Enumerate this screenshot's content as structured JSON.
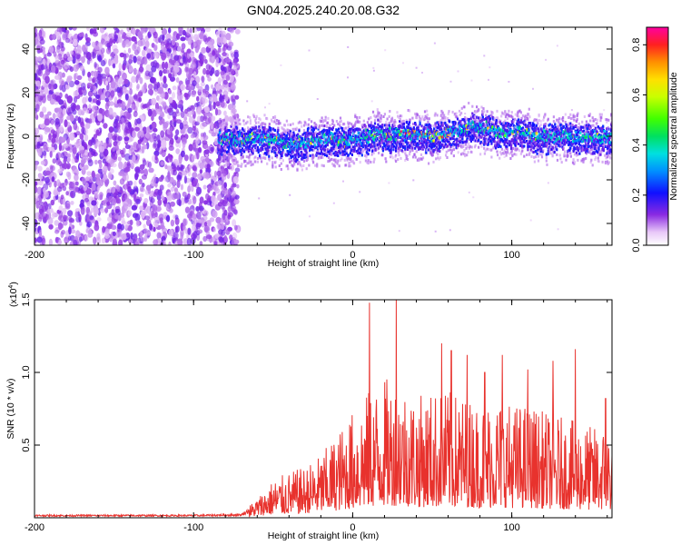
{
  "title": "GN04.2025.240.20.08.G32",
  "chart_data": [
    {
      "type": "heatmap",
      "xlabel": "Height of straight line (km)",
      "ylabel": "Frequency (Hz)",
      "xlim": [
        -200,
        163
      ],
      "ylim": [
        -50,
        50
      ],
      "x_ticks": [
        -200,
        -100,
        0,
        100
      ],
      "x_tick_labels": [
        "-200",
        "-100",
        "0",
        "100"
      ],
      "y_ticks": [
        -40,
        -20,
        0,
        20,
        40
      ],
      "y_tick_labels": [
        "-40",
        "-20",
        "0",
        "20",
        "40"
      ],
      "noise_region_x": [
        -200,
        -72
      ],
      "signal_region_x": [
        -85,
        163
      ],
      "signal_center_freq": [
        [
          -85,
          -2
        ],
        [
          -70,
          -2
        ],
        [
          -55,
          -1
        ],
        [
          -45,
          -3
        ],
        [
          -35,
          -4
        ],
        [
          -25,
          -2
        ],
        [
          -15,
          -1
        ],
        [
          -5,
          -2
        ],
        [
          5,
          -1
        ],
        [
          15,
          1
        ],
        [
          25,
          0
        ],
        [
          35,
          1
        ],
        [
          45,
          0
        ],
        [
          55,
          1
        ],
        [
          65,
          2
        ],
        [
          75,
          4
        ],
        [
          85,
          3
        ],
        [
          95,
          1
        ],
        [
          105,
          2
        ],
        [
          115,
          0
        ],
        [
          125,
          -1
        ],
        [
          135,
          0
        ],
        [
          145,
          -1
        ],
        [
          163,
          -1
        ]
      ],
      "colorbar": {
        "label": "Normalized spectral amplitude",
        "range": [
          0.0,
          0.87
        ],
        "ticks": [
          0.0,
          0.2,
          0.4,
          0.6,
          0.8
        ],
        "tick_labels": [
          "0.0",
          "0.2",
          "0.4",
          "0.6",
          "0.8"
        ]
      }
    },
    {
      "type": "line",
      "xlabel": "Height of straight line (km)",
      "ylabel": "SNR (10 * v/v)",
      "y_scale_note": "(x10",
      "y_scale_exp": "4",
      "y_scale_close": ")",
      "xlim": [
        -200,
        163
      ],
      "ylim": [
        0,
        1.5
      ],
      "x_ticks": [
        -200,
        -100,
        0,
        100
      ],
      "x_tick_labels": [
        "-200",
        "-100",
        "0",
        "100"
      ],
      "y_ticks": [
        0.5,
        1.0,
        1.5
      ],
      "y_tick_labels": [
        "0.5",
        "1.0",
        "1.5"
      ],
      "color": "#e8322d",
      "series_envelope": [
        [
          -200,
          0.015
        ],
        [
          -100,
          0.015
        ],
        [
          -70,
          0.02
        ],
        [
          -60,
          0.08
        ],
        [
          -50,
          0.15
        ],
        [
          -40,
          0.18
        ],
        [
          -30,
          0.2
        ],
        [
          -20,
          0.25
        ],
        [
          -10,
          0.33
        ],
        [
          0,
          0.42
        ],
        [
          10,
          0.5
        ],
        [
          20,
          0.55
        ],
        [
          30,
          0.55
        ],
        [
          40,
          0.48
        ],
        [
          50,
          0.5
        ],
        [
          60,
          0.5
        ],
        [
          70,
          0.48
        ],
        [
          80,
          0.45
        ],
        [
          90,
          0.48
        ],
        [
          100,
          0.45
        ],
        [
          110,
          0.45
        ],
        [
          120,
          0.42
        ],
        [
          130,
          0.4
        ],
        [
          140,
          0.38
        ],
        [
          150,
          0.36
        ],
        [
          163,
          0.36
        ]
      ],
      "peaks": [
        [
          10.5,
          1.48
        ],
        [
          27.4,
          1.5
        ],
        [
          56,
          1.2
        ],
        [
          62,
          1.15
        ],
        [
          72,
          1.12
        ],
        [
          83,
          1.0
        ],
        [
          94,
          1.12
        ],
        [
          110,
          1.02
        ],
        [
          126,
          1.08
        ],
        [
          140,
          1.16
        ],
        [
          159,
          0.82
        ]
      ]
    }
  ]
}
